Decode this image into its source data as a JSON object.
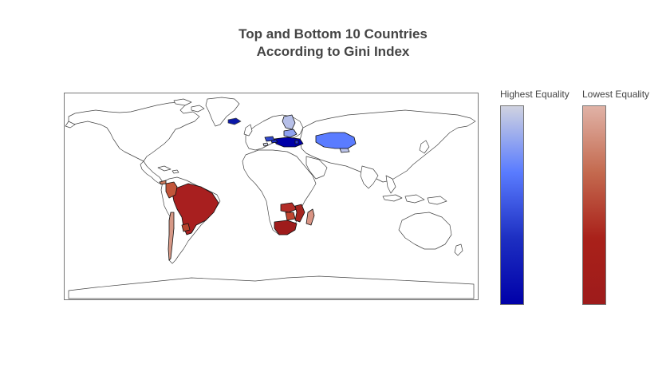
{
  "title": {
    "line1": "Top and Bottom 10 Countries",
    "line2": "According to Gini Index"
  },
  "colorbars": [
    {
      "title": "Highest Equality",
      "colors": [
        "#cfd2e0",
        "#5a7cff",
        "#1d2fc2",
        "#0000a8"
      ]
    },
    {
      "title": "Lowest Equality",
      "colors": [
        "#e0b2a6",
        "#c46a4f",
        "#a9211a",
        "#9e1b1b"
      ]
    }
  ],
  "map": {
    "projection": "equirectangular",
    "land_color": "#ffffff",
    "border_color": "#444444",
    "frame_color": "#777777",
    "highlighted": {
      "highest_equality": [
        {
          "name": "Kazakhstan",
          "color": "#5a7cff"
        },
        {
          "name": "Ukraine",
          "color": "#0000a8"
        },
        {
          "name": "Belarus",
          "color": "#8ea0f0"
        },
        {
          "name": "Finland",
          "color": "#b6bfe8"
        },
        {
          "name": "Slovakia",
          "color": "#1d2fc2"
        },
        {
          "name": "Czech Republic",
          "color": "#3046cc"
        },
        {
          "name": "Moldova",
          "color": "#2a3ad0"
        },
        {
          "name": "Slovenia",
          "color": "#d2d6e6"
        },
        {
          "name": "Iceland",
          "color": "#0b18a8"
        },
        {
          "name": "Kyrgyzstan",
          "color": "#bcc4ea"
        }
      ],
      "lowest_equality": [
        {
          "name": "Brazil",
          "color": "#a81f1f"
        },
        {
          "name": "Colombia",
          "color": "#c2553a"
        },
        {
          "name": "Panama",
          "color": "#cc7a5e"
        },
        {
          "name": "Paraguay",
          "color": "#b8452f"
        },
        {
          "name": "Chile",
          "color": "#d69886"
        },
        {
          "name": "South Africa",
          "color": "#9e1b1b"
        },
        {
          "name": "Zambia",
          "color": "#b22d28"
        },
        {
          "name": "Zimbabwe",
          "color": "#c04530"
        },
        {
          "name": "Mozambique",
          "color": "#a52520"
        },
        {
          "name": "Madagascar",
          "color": "#d99484"
        }
      ]
    }
  }
}
